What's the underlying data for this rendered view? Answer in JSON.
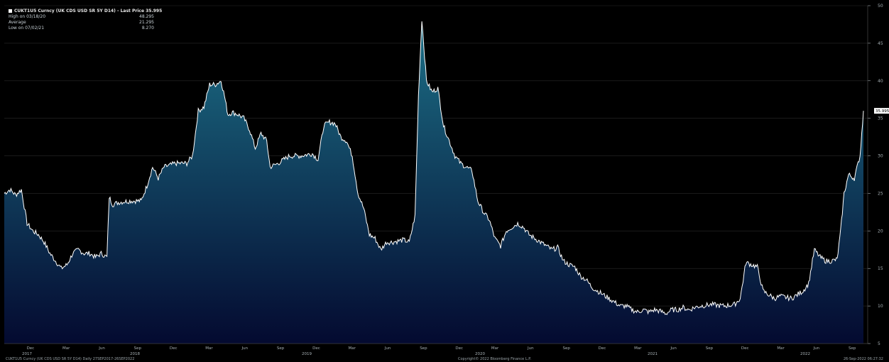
{
  "legend": {
    "title": "CUKT1U5 Curncy (UK CDS USD SR 5Y D14) - Last Price 35.995",
    "rows": [
      {
        "label": "High on 03/18/20",
        "value": "48.295"
      },
      {
        "label": "Average",
        "value": "21.295"
      },
      {
        "label": "Low on 07/02/21",
        "value": "8.270"
      }
    ]
  },
  "footer": {
    "left": "CUKT1U5 Curncy (UK CDS USD SR 5Y D14) Daily 27SEP2017-26SEP2022",
    "center": "Copyright© 2022 Bloomberg Finance L.P.",
    "right": "26-Sep-2022 06:27:32"
  },
  "last_price_label": "35.995",
  "colors": {
    "background": "#000000",
    "line": "#ffffff",
    "area_top": "#1c6f86",
    "area_bottom": "#040a30",
    "grid": "#2a2a2a",
    "axis_text": "#a7b0b5"
  },
  "chart_data": {
    "type": "area",
    "ylim": [
      5,
      50
    ],
    "yticks": [
      5,
      10,
      15,
      20,
      25,
      30,
      35,
      40,
      45,
      50
    ],
    "x_month_ticks": [
      {
        "month": 3,
        "label": "Dec"
      },
      {
        "month": 6,
        "label": "Mar"
      },
      {
        "month": 9,
        "label": "Jun"
      },
      {
        "month": 12,
        "label": "Sep"
      },
      {
        "month": 15,
        "label": "Dec"
      },
      {
        "month": 18,
        "label": "Mar"
      },
      {
        "month": 21,
        "label": "Jun"
      },
      {
        "month": 24,
        "label": "Sep"
      },
      {
        "month": 27,
        "label": "Dec"
      },
      {
        "month": 30,
        "label": "Mar"
      },
      {
        "month": 33,
        "label": "Jun"
      },
      {
        "month": 36,
        "label": "Sep"
      },
      {
        "month": 39,
        "label": "Dec"
      },
      {
        "month": 42,
        "label": "Mar"
      },
      {
        "month": 45,
        "label": "Jun"
      },
      {
        "month": 48,
        "label": "Sep"
      },
      {
        "month": 51,
        "label": "Dec"
      },
      {
        "month": 54,
        "label": "Mar"
      },
      {
        "month": 57,
        "label": "Jun"
      },
      {
        "month": 60,
        "label": "Sep"
      }
    ],
    "x_year_ticks": [
      {
        "month": 0,
        "label": "2017"
      },
      {
        "month": 8,
        "label": "2018"
      },
      {
        "month": 20,
        "label": "2019"
      },
      {
        "month": 32,
        "label": "2020"
      },
      {
        "month": 44,
        "label": "2021"
      },
      {
        "month": 56,
        "label": "2022"
      }
    ],
    "x_months_span": 60.5,
    "series": [
      {
        "values": [
          [
            0,
            25
          ],
          [
            0.5,
            25.5
          ],
          [
            1,
            24.8
          ],
          [
            1.5,
            25.5
          ],
          [
            2,
            21
          ],
          [
            2.5,
            20
          ],
          [
            3,
            19.5
          ],
          [
            3.5,
            18.5
          ],
          [
            4,
            17
          ],
          [
            4.5,
            16
          ],
          [
            5,
            15
          ],
          [
            5.5,
            15.5
          ],
          [
            6,
            17
          ],
          [
            6.5,
            17.5
          ],
          [
            7,
            17
          ],
          [
            7.5,
            17
          ],
          [
            8,
            16.5
          ],
          [
            8.5,
            17
          ],
          [
            9,
            16.5
          ],
          [
            9.2,
            24.5
          ],
          [
            9.5,
            23.5
          ],
          [
            10,
            23.8
          ],
          [
            11,
            24
          ],
          [
            12,
            24
          ],
          [
            12.5,
            26
          ],
          [
            13,
            28.5
          ],
          [
            13.5,
            27
          ],
          [
            14,
            28.5
          ],
          [
            15,
            29
          ],
          [
            16,
            29
          ],
          [
            16.5,
            30
          ],
          [
            17,
            36
          ],
          [
            17.5,
            36.5
          ],
          [
            18,
            39.5
          ],
          [
            18.5,
            39.5
          ],
          [
            19,
            40
          ],
          [
            19.3,
            38
          ],
          [
            19.6,
            35.5
          ],
          [
            20,
            35.8
          ],
          [
            20.5,
            35.5
          ],
          [
            21,
            35
          ],
          [
            21.5,
            33.5
          ],
          [
            22,
            31
          ],
          [
            22.5,
            33
          ],
          [
            23,
            32
          ],
          [
            23.3,
            28.5
          ],
          [
            24,
            29
          ],
          [
            24.5,
            29.5
          ],
          [
            25,
            30
          ],
          [
            26,
            30
          ],
          [
            27,
            30.3
          ],
          [
            27.5,
            29.5
          ],
          [
            28,
            34
          ],
          [
            28.5,
            34.5
          ],
          [
            29,
            34.3
          ],
          [
            29.5,
            32.5
          ],
          [
            30,
            32
          ],
          [
            30.5,
            30
          ],
          [
            31,
            25
          ],
          [
            31.5,
            23
          ],
          [
            32,
            19.5
          ],
          [
            32.5,
            19
          ],
          [
            33,
            17.5
          ],
          [
            33.5,
            18.5
          ],
          [
            34,
            18.5
          ],
          [
            35,
            18.8
          ],
          [
            35.5,
            18.5
          ],
          [
            36,
            22
          ],
          [
            36.3,
            38
          ],
          [
            36.6,
            48.2
          ],
          [
            37,
            40
          ],
          [
            37.5,
            38.5
          ],
          [
            38,
            39
          ],
          [
            38.5,
            34
          ],
          [
            39,
            32
          ],
          [
            39.5,
            30
          ],
          [
            40,
            29
          ],
          [
            40.5,
            28.5
          ],
          [
            41,
            28
          ],
          [
            41.5,
            24
          ],
          [
            42,
            22.5
          ],
          [
            42.5,
            21.5
          ],
          [
            43,
            19
          ],
          [
            43.5,
            18
          ],
          [
            44,
            20
          ],
          [
            44.5,
            20.5
          ],
          [
            45,
            21
          ],
          [
            45.5,
            20.5
          ],
          [
            46,
            19.5
          ],
          [
            46.5,
            19
          ],
          [
            47,
            18.5
          ],
          [
            47.5,
            18
          ],
          [
            48,
            17.5
          ],
          [
            48.5,
            17.8
          ],
          [
            49,
            16
          ],
          [
            49.5,
            15.5
          ],
          [
            50,
            15.2
          ],
          [
            50.5,
            14
          ],
          [
            51,
            13.5
          ],
          [
            51.5,
            12.5
          ],
          [
            52,
            12
          ],
          [
            52.5,
            11.5
          ],
          [
            53,
            11
          ],
          [
            53.5,
            10.5
          ],
          [
            54,
            10
          ],
          [
            54.5,
            10
          ],
          [
            55,
            9.5
          ],
          [
            55.5,
            9.2
          ],
          [
            56,
            9.5
          ],
          [
            56.5,
            9.2
          ],
          [
            57,
            9.5
          ],
          [
            57.5,
            9.3
          ],
          [
            58,
            9
          ],
          [
            58.5,
            9.5
          ],
          [
            59,
            9.5
          ],
          [
            59.5,
            9.8
          ],
          [
            60,
            9.5
          ],
          [
            60.5,
            9.8
          ],
          [
            61,
            10
          ],
          [
            62,
            10.2
          ],
          [
            63,
            10
          ],
          [
            64,
            10.2
          ],
          [
            64.5,
            11
          ],
          [
            65,
            15.8
          ],
          [
            65.5,
            15.5
          ],
          [
            66,
            15.2
          ],
          [
            66.5,
            12
          ],
          [
            67,
            11.5
          ],
          [
            67.5,
            11
          ],
          [
            68,
            11.3
          ],
          [
            69,
            11
          ],
          [
            69.5,
            11.5
          ],
          [
            70,
            12
          ],
          [
            70.5,
            13
          ],
          [
            71,
            17.5
          ],
          [
            71.5,
            16.5
          ],
          [
            72,
            16
          ],
          [
            72.5,
            16
          ],
          [
            73,
            16.2
          ],
          [
            73.3,
            20
          ],
          [
            73.6,
            25
          ],
          [
            74,
            27.5
          ],
          [
            74.5,
            27
          ],
          [
            75,
            30
          ],
          [
            75.3,
            36
          ]
        ]
      }
    ]
  }
}
